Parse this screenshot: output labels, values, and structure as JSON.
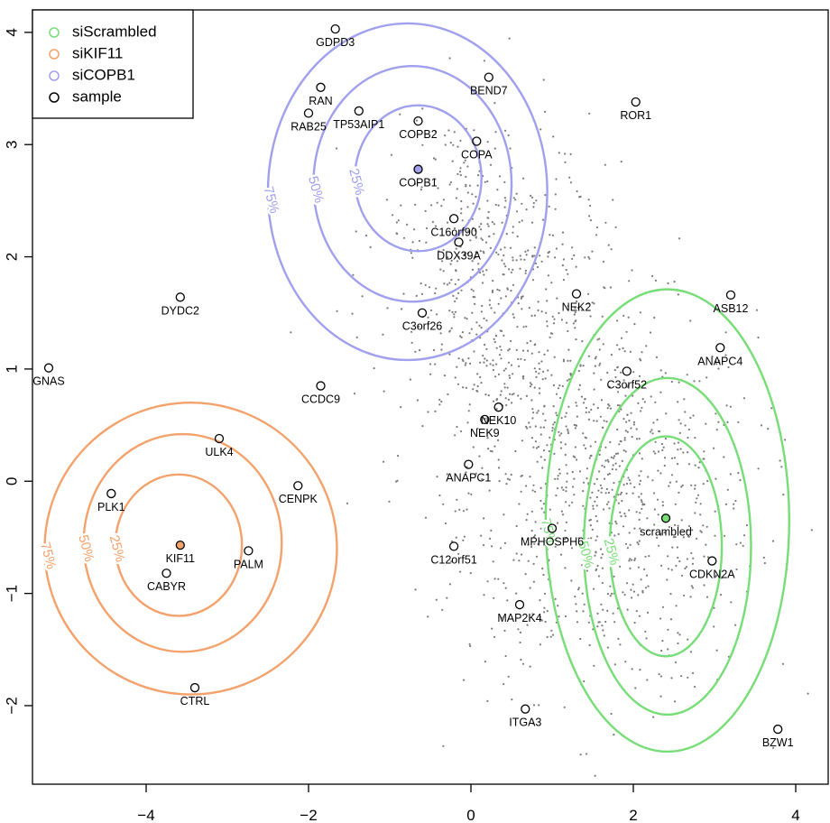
{
  "chart_data": {
    "type": "scatter",
    "title": "",
    "xlabel": "",
    "ylabel": "",
    "xlim": [
      -5.4,
      4.4
    ],
    "ylim": [
      -2.7,
      4.2
    ],
    "x_ticks": [
      "-4",
      "-2",
      "0",
      "2",
      "4"
    ],
    "y_ticks": [
      "-2",
      "-1",
      "0",
      "1",
      "2",
      "3",
      "4"
    ],
    "grid": false,
    "legend_position": "top-left",
    "legend": [
      {
        "label": "siScrambled",
        "color": "#77dd77"
      },
      {
        "label": "siKIF11",
        "color": "#f4a26b"
      },
      {
        "label": "siCOPB1",
        "color": "#a0a0ee"
      },
      {
        "label": "sample",
        "color": "#000000"
      }
    ],
    "colors": {
      "scrambled": "#77dd77",
      "kif11": "#f4a26b",
      "copb1": "#a0a0ee",
      "background": "#7a7a7a"
    },
    "centers": [
      {
        "label": "scrambled",
        "group": "siScrambled",
        "x": 2.4,
        "y": -0.33
      },
      {
        "label": "KIF11",
        "group": "siKIF11",
        "x": -3.58,
        "y": -0.57
      },
      {
        "label": "COPB1",
        "group": "siCOPB1",
        "x": -0.65,
        "y": 2.78
      }
    ],
    "contours": [
      {
        "group": "siScrambled",
        "level": "25%",
        "cx": 2.4,
        "cy": -0.58,
        "rx": 0.69,
        "ry": 0.98
      },
      {
        "group": "siScrambled",
        "level": "50%",
        "cx": 2.42,
        "cy": -0.58,
        "rx": 1.03,
        "ry": 1.5
      },
      {
        "group": "siScrambled",
        "level": "75%",
        "cx": 2.42,
        "cy": -0.35,
        "rx": 1.5,
        "ry": 2.06
      },
      {
        "group": "siKIF11",
        "level": "25%",
        "cx": -3.6,
        "cy": -0.57,
        "rx": 0.78,
        "ry": 0.63
      },
      {
        "group": "siKIF11",
        "level": "50%",
        "cx": -3.55,
        "cy": -0.55,
        "rx": 1.22,
        "ry": 0.97
      },
      {
        "group": "siKIF11",
        "level": "75%",
        "cx": -3.45,
        "cy": -0.6,
        "rx": 1.8,
        "ry": 1.3
      },
      {
        "group": "siCOPB1",
        "level": "25%",
        "cx": -0.65,
        "cy": 2.7,
        "rx": 0.78,
        "ry": 0.65
      },
      {
        "group": "siCOPB1",
        "level": "50%",
        "cx": -0.72,
        "cy": 2.65,
        "rx": 1.22,
        "ry": 1.05
      },
      {
        "group": "siCOPB1",
        "level": "75%",
        "cx": -0.78,
        "cy": 2.58,
        "rx": 1.72,
        "ry": 1.5
      }
    ],
    "points": [
      {
        "label": "GDPD3",
        "x": -1.67,
        "y": 4.03
      },
      {
        "label": "RAN",
        "x": -1.85,
        "y": 3.51
      },
      {
        "label": "BEND7",
        "x": 0.22,
        "y": 3.6
      },
      {
        "label": "ROR1",
        "x": 2.03,
        "y": 3.38
      },
      {
        "label": "RAB25",
        "x": -2.0,
        "y": 3.28
      },
      {
        "label": "TP53AIP1",
        "x": -1.38,
        "y": 3.3
      },
      {
        "label": "COPB2",
        "x": -0.65,
        "y": 3.21
      },
      {
        "label": "COPA",
        "x": 0.07,
        "y": 3.03
      },
      {
        "label": "C16orf90",
        "x": -0.21,
        "y": 2.34
      },
      {
        "label": "DDX39A",
        "x": -0.15,
        "y": 2.13
      },
      {
        "label": "NEK2",
        "x": 1.3,
        "y": 1.67
      },
      {
        "label": "ASB12",
        "x": 3.2,
        "y": 1.66
      },
      {
        "label": "DYDC2",
        "x": -3.58,
        "y": 1.64
      },
      {
        "label": "C3orf26",
        "x": -0.6,
        "y": 1.5
      },
      {
        "label": "ANAPC4",
        "x": 3.07,
        "y": 1.19
      },
      {
        "label": "GNAS",
        "x": -5.2,
        "y": 1.01
      },
      {
        "label": "C3orf52",
        "x": 1.92,
        "y": 0.98
      },
      {
        "label": "CCDC9",
        "x": -1.85,
        "y": 0.85
      },
      {
        "label": "NEK10",
        "x": 0.34,
        "y": 0.66
      },
      {
        "label": "NEK9",
        "x": 0.17,
        "y": 0.55
      },
      {
        "label": "ULK4",
        "x": -3.1,
        "y": 0.38
      },
      {
        "label": "ANAPC1",
        "x": -0.03,
        "y": 0.15
      },
      {
        "label": "CENPK",
        "x": -2.13,
        "y": -0.04
      },
      {
        "label": "PLK1",
        "x": -4.43,
        "y": -0.11
      },
      {
        "label": "MPHOSPH6",
        "x": 1.0,
        "y": -0.42
      },
      {
        "label": "C12orf51",
        "x": -0.21,
        "y": -0.58
      },
      {
        "label": "PALM",
        "x": -2.74,
        "y": -0.62
      },
      {
        "label": "CDKN2A",
        "x": 2.97,
        "y": -0.71
      },
      {
        "label": "CABYR",
        "x": -3.75,
        "y": -0.82
      },
      {
        "label": "MAP2K4",
        "x": 0.6,
        "y": -1.1
      },
      {
        "label": "CTRL",
        "x": -3.4,
        "y": -1.84
      },
      {
        "label": "ITGA3",
        "x": 0.67,
        "y": -2.03
      },
      {
        "label": "BZW1",
        "x": 3.78,
        "y": -2.21
      }
    ],
    "background_points": {
      "description_free": true,
      "count": 1500,
      "clusters": [
        {
          "cx": 1.7,
          "cy": -0.2,
          "sx": 0.9,
          "sy": 0.85,
          "weight": 0.55
        },
        {
          "cx": 0.6,
          "cy": 1.2,
          "sx": 0.75,
          "sy": 0.8,
          "weight": 0.3
        },
        {
          "cx": 0.0,
          "cy": 2.2,
          "sx": 0.55,
          "sy": 0.6,
          "weight": 0.15
        }
      ]
    }
  }
}
